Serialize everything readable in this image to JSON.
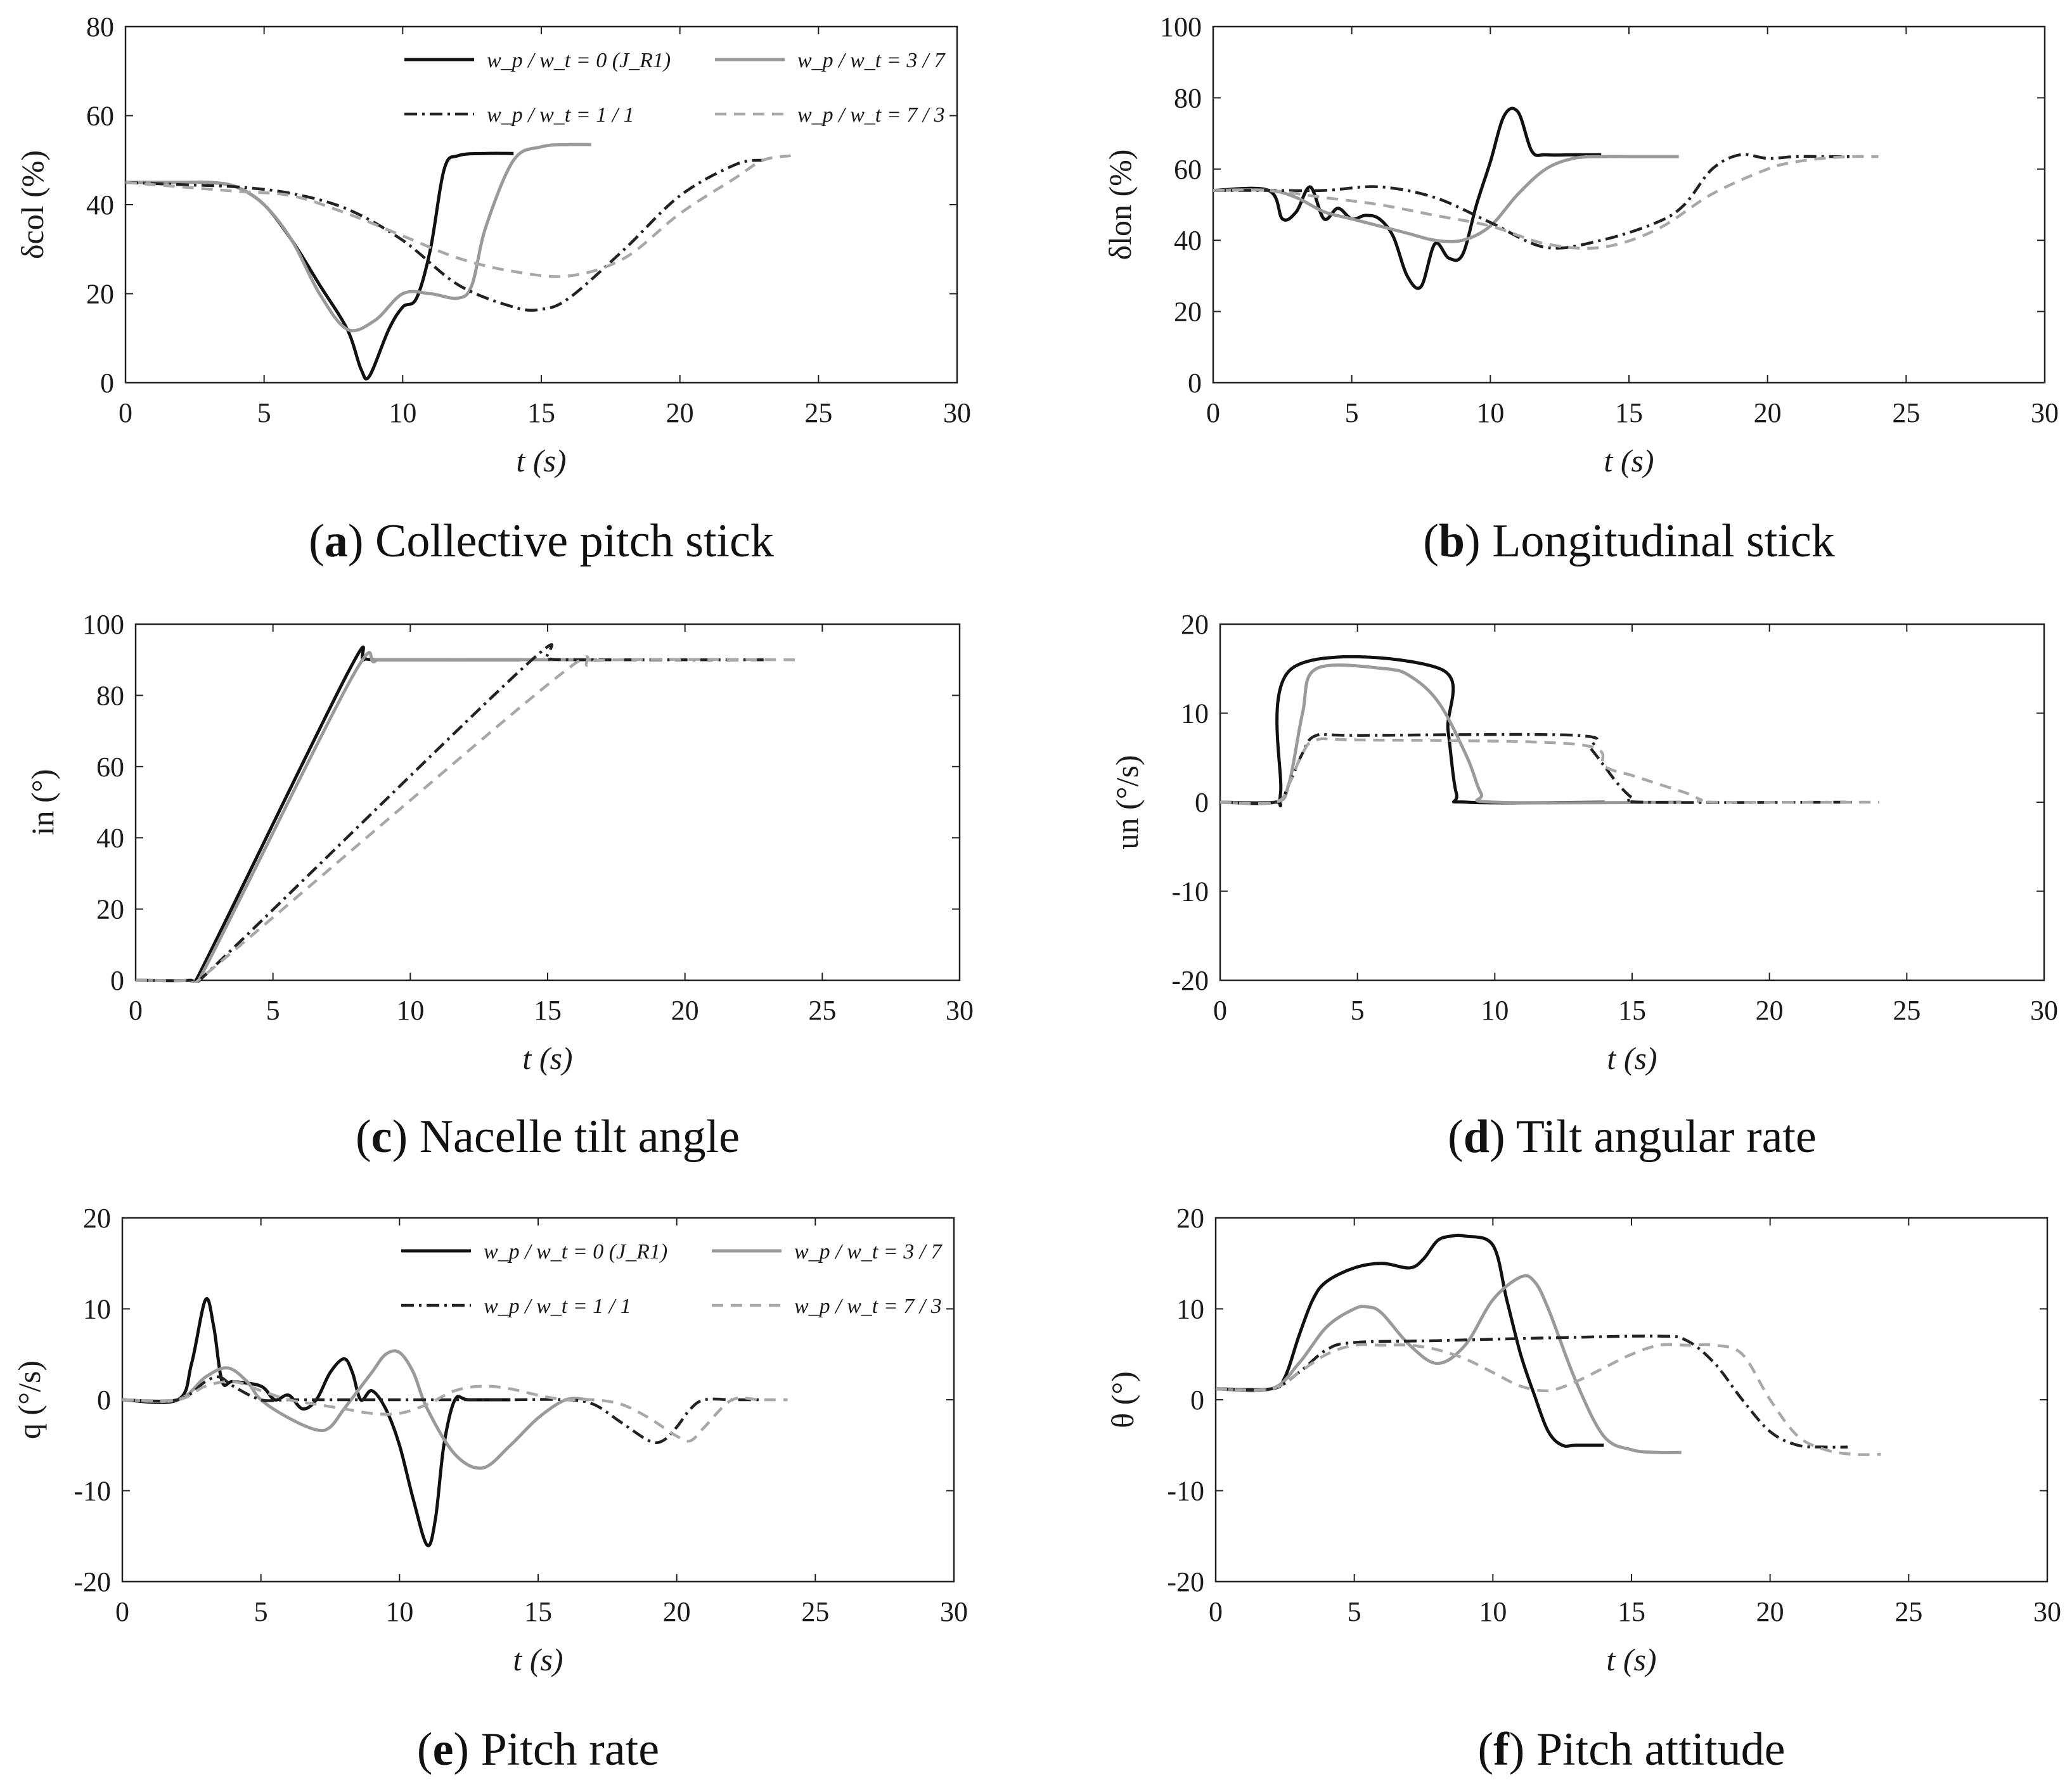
{
  "figure": {
    "legend_labels": {
      "s0": "w_p / w_t = 0 (J_R1)",
      "s1": "w_p / w_t = 3 / 7",
      "s2": "w_p / w_t = 1 / 1",
      "s3": "w_p / w_t = 7 / 3"
    },
    "series_colors": {
      "s0": "#111111",
      "s1": "#9a9a9a",
      "s2": "#222222",
      "s3": "#a8a8a8"
    }
  },
  "chart_data": [
    {
      "type": "line",
      "label": "a",
      "caption": "Collective pitch stick",
      "ylabel": "δcol (%)",
      "xlabel": "t (s)",
      "xlim": [
        0,
        30
      ],
      "ylim": [
        0,
        80
      ],
      "xticks": [
        0,
        5,
        10,
        15,
        20,
        25,
        30
      ],
      "yticks": [
        0,
        20,
        40,
        60,
        80
      ],
      "legend": true,
      "series": [
        {
          "name": "w_p / w_t = 0 (J_R1)",
          "x": [
            0,
            2,
            3,
            4,
            5,
            6,
            7,
            8,
            8.5,
            8.8,
            9.5,
            10,
            10.5,
            11,
            11.5,
            12,
            13,
            14
          ],
          "y": [
            45,
            45,
            45,
            44,
            40,
            32,
            22,
            12,
            3,
            1.5,
            12,
            17,
            19,
            30,
            48,
            51,
            51.5,
            51.5
          ]
        },
        {
          "name": "w_p / w_t = 3 / 7",
          "x": [
            0,
            2,
            3,
            4,
            5,
            6,
            7,
            8,
            9,
            10,
            11,
            12,
            12.5,
            13,
            14,
            15,
            16,
            16.8
          ],
          "y": [
            45,
            45,
            45,
            44,
            40,
            32,
            20,
            12,
            14,
            20,
            20,
            19,
            22,
            35,
            50,
            53,
            53.5,
            53.5
          ]
        },
        {
          "name": "w_p / w_t = 1 / 1",
          "x": [
            0,
            2,
            4,
            6,
            8,
            10,
            12,
            14,
            15,
            16,
            18,
            20,
            22,
            23
          ],
          "y": [
            45,
            44.5,
            44,
            42.5,
            39,
            32,
            22,
            17,
            16.5,
            19,
            30,
            42,
            49,
            50
          ]
        },
        {
          "name": "w_p / w_t = 7 / 3",
          "x": [
            0,
            2,
            4,
            6,
            8,
            10,
            12,
            14,
            16,
            18,
            20,
            22,
            23,
            24
          ],
          "y": [
            45,
            44,
            43,
            42,
            38,
            33,
            28,
            25,
            24,
            28,
            38,
            46,
            50,
            51
          ]
        }
      ]
    },
    {
      "type": "line",
      "label": "b",
      "caption": "Longitudinal stick",
      "ylabel": "δlon (%)",
      "xlabel": "t (s)",
      "xlim": [
        0,
        30
      ],
      "ylim": [
        0,
        100
      ],
      "xticks": [
        0,
        5,
        10,
        15,
        20,
        25,
        30
      ],
      "yticks": [
        0,
        20,
        40,
        60,
        80,
        100
      ],
      "legend": false,
      "series": [
        {
          "name": "w_p / w_t = 0 (J_R1)",
          "x": [
            0,
            2,
            2.5,
            3,
            3.5,
            4,
            4.5,
            5,
            5.5,
            6,
            6.5,
            7,
            7.5,
            8,
            8.5,
            9,
            9.5,
            10,
            10.5,
            11,
            11.5,
            12,
            13,
            14
          ],
          "y": [
            54,
            54,
            46,
            48,
            55,
            46,
            49,
            46,
            47,
            46,
            41,
            30,
            27,
            39,
            35,
            36,
            50,
            62,
            75,
            76,
            65,
            64,
            64,
            64
          ]
        },
        {
          "name": "w_p / w_t = 3 / 7",
          "x": [
            0,
            2,
            3,
            4,
            5,
            6,
            7,
            8,
            9,
            10,
            11,
            12,
            13,
            14,
            15,
            16,
            16.8
          ],
          "y": [
            54,
            54,
            52,
            48,
            46,
            44,
            42,
            40,
            40,
            44,
            53,
            60,
            63,
            63.5,
            63.5,
            63.5,
            63.5
          ]
        },
        {
          "name": "w_p / w_t = 1 / 1",
          "x": [
            0,
            2,
            4,
            6,
            8,
            10,
            12,
            14,
            16,
            17,
            18,
            19,
            20,
            21,
            22,
            23
          ],
          "y": [
            54,
            54,
            54,
            55,
            52,
            45,
            38,
            40,
            45,
            50,
            60,
            64,
            63,
            63.5,
            63.5,
            63.5
          ]
        },
        {
          "name": "w_p / w_t = 7 / 3",
          "x": [
            0,
            2,
            4,
            6,
            8,
            10,
            12,
            14,
            16,
            18,
            20,
            21,
            22,
            23,
            24
          ],
          "y": [
            54,
            54,
            52,
            50,
            47,
            44,
            39,
            38,
            43,
            53,
            60,
            62,
            63,
            63.5,
            63.5
          ]
        }
      ]
    },
    {
      "type": "line",
      "label": "c",
      "caption": "Nacelle tilt angle",
      "ylabel": "in (°)",
      "xlabel": "t (s)",
      "xlim": [
        0,
        30
      ],
      "ylim": [
        0,
        100
      ],
      "xticks": [
        0,
        5,
        10,
        15,
        20,
        25,
        30
      ],
      "yticks": [
        0,
        20,
        40,
        60,
        80,
        100
      ],
      "legend": false,
      "series": [
        {
          "name": "w_p / w_t = 0 (J_R1)",
          "x": [
            0,
            2,
            2.3,
            7.7,
            8.3,
            9,
            14
          ],
          "y": [
            0,
            0,
            1.5,
            86,
            90,
            90,
            90
          ]
        },
        {
          "name": "w_p / w_t = 3 / 7",
          "x": [
            0,
            2,
            2.4,
            7.8,
            8.7,
            9.5,
            16.8
          ],
          "y": [
            0,
            0,
            1.5,
            84,
            89.5,
            90,
            90
          ]
        },
        {
          "name": "w_p / w_t = 1 / 1",
          "x": [
            0,
            2,
            2.6,
            14,
            15,
            16,
            23
          ],
          "y": [
            0,
            0,
            2,
            87,
            90,
            90,
            90
          ]
        },
        {
          "name": "w_p / w_t = 7 / 3",
          "x": [
            0,
            2,
            2.6,
            15,
            16.5,
            17.5,
            24
          ],
          "y": [
            0,
            0,
            2,
            83,
            88.5,
            90,
            90
          ]
        }
      ]
    },
    {
      "type": "line",
      "label": "d",
      "caption": "Tilt angular rate",
      "ylabel": "un (°/s)",
      "xlabel": "t (s)",
      "xlim": [
        0,
        30
      ],
      "ylim": [
        -20,
        20
      ],
      "xticks": [
        0,
        5,
        10,
        15,
        20,
        25,
        30
      ],
      "yticks": [
        -20,
        -10,
        0,
        10,
        20
      ],
      "legend": false,
      "series": [
        {
          "name": "w_p / w_t = 0 (J_R1)",
          "x": [
            0,
            2,
            2.2,
            2.6,
            8,
            8.3,
            8.6,
            9,
            14
          ],
          "y": [
            0,
            0,
            1,
            15,
            15,
            8,
            1,
            0,
            0
          ]
        },
        {
          "name": "w_p / w_t = 3 / 7",
          "x": [
            0,
            2,
            2.5,
            3,
            3.5,
            6,
            7,
            8,
            9,
            9.5,
            10,
            16.8
          ],
          "y": [
            0,
            0,
            2,
            10,
            15,
            15,
            14,
            11,
            5,
            1,
            0,
            0
          ]
        },
        {
          "name": "w_p / w_t = 1 / 1",
          "x": [
            0,
            2,
            2.5,
            3,
            3.5,
            5,
            13,
            13.5,
            14,
            14.5,
            15,
            15.5,
            23
          ],
          "y": [
            0,
            0,
            2,
            5.5,
            7.5,
            7.5,
            7.5,
            6,
            4,
            2,
            0.5,
            0,
            0
          ]
        },
        {
          "name": "w_p / w_t = 7 / 3",
          "x": [
            0,
            2,
            2.5,
            3,
            3.5,
            5,
            13,
            14,
            15,
            16,
            17,
            17.5,
            18,
            24
          ],
          "y": [
            0,
            0,
            2,
            5.5,
            7,
            7,
            6.5,
            4,
            3,
            2,
            1,
            0.3,
            0,
            0
          ]
        }
      ]
    },
    {
      "type": "line",
      "label": "e",
      "caption": "Pitch rate",
      "ylabel": "q (°/s)",
      "xlabel": "t (s)",
      "xlim": [
        0,
        30
      ],
      "ylim": [
        -20,
        20
      ],
      "xticks": [
        0,
        5,
        10,
        15,
        20,
        25,
        30
      ],
      "yticks": [
        -20,
        -10,
        0,
        10,
        20
      ],
      "legend": true,
      "series": [
        {
          "name": "w_p / w_t = 0 (J_R1)",
          "x": [
            0,
            2,
            2.5,
            3,
            3.3,
            3.6,
            4,
            5,
            5.5,
            6,
            6.5,
            7,
            7.5,
            8,
            8.3,
            8.6,
            9,
            9.5,
            10,
            10.5,
            11,
            11.3,
            11.6,
            12,
            12.5,
            14
          ],
          "y": [
            0,
            0,
            4,
            11,
            8,
            2,
            2,
            1.5,
            0,
            0.5,
            -1,
            0,
            3,
            4.5,
            3,
            0,
            1,
            -1,
            -5,
            -11,
            -16,
            -13,
            -5,
            0,
            0,
            0
          ]
        },
        {
          "name": "w_p / w_t = 3 / 7",
          "x": [
            0,
            2,
            3,
            3.8,
            4.5,
            5,
            6,
            7,
            7.5,
            8,
            8.5,
            9,
            9.5,
            10,
            10.5,
            11,
            12,
            13,
            14,
            15,
            16,
            16.8
          ],
          "y": [
            0,
            0,
            2.5,
            3.5,
            2,
            0,
            -2,
            -3.3,
            -3,
            -1,
            1,
            3,
            5,
            5.2,
            3,
            -1,
            -6,
            -7.5,
            -5,
            -2,
            0,
            0
          ]
        },
        {
          "name": "w_p / w_t = 1 / 1",
          "x": [
            0,
            2,
            3,
            3.5,
            4,
            5,
            6,
            8,
            10,
            12,
            14,
            16,
            17,
            18,
            19,
            19.5,
            20,
            20.5,
            21,
            22,
            23
          ],
          "y": [
            0,
            0,
            2,
            2.5,
            1.5,
            0,
            0,
            0,
            0,
            0,
            0,
            0,
            -0.5,
            -2.5,
            -4.5,
            -4.5,
            -3,
            -1,
            0,
            0,
            0
          ]
        },
        {
          "name": "w_p / w_t = 7 / 3",
          "x": [
            0,
            2,
            3,
            4,
            5,
            6,
            7,
            8,
            9,
            10,
            11,
            12,
            13,
            14,
            15,
            16,
            17,
            18,
            19,
            20,
            20.5,
            21,
            22,
            23,
            24
          ],
          "y": [
            0,
            0,
            1.5,
            2,
            1,
            0,
            -0.5,
            -1,
            -1.5,
            -1.5,
            -0.5,
            1,
            1.5,
            1.2,
            0.5,
            0,
            0,
            -0.5,
            -2,
            -4,
            -4.5,
            -3,
            0,
            0,
            0
          ]
        }
      ]
    },
    {
      "type": "line",
      "label": "f",
      "caption": "Pitch attitude",
      "ylabel": "θ (°)",
      "xlabel": "t (s)",
      "xlim": [
        0,
        30
      ],
      "ylim": [
        -20,
        20
      ],
      "xticks": [
        0,
        5,
        10,
        15,
        20,
        25,
        30
      ],
      "yticks": [
        -20,
        -10,
        0,
        10,
        20
      ],
      "legend": false,
      "series": [
        {
          "name": "w_p / w_t = 0 (J_R1)",
          "x": [
            0,
            2,
            2.5,
            3,
            3.5,
            4,
            5,
            6,
            7,
            7.5,
            8,
            8.5,
            9,
            10,
            10.5,
            11,
            11.5,
            12,
            12.5,
            13,
            14
          ],
          "y": [
            1.2,
            1.2,
            2.5,
            7,
            11,
            13,
            14.5,
            15,
            14.5,
            15.5,
            17.5,
            18,
            18,
            17,
            11,
            5,
            0.5,
            -3.5,
            -5,
            -5,
            -5
          ]
        },
        {
          "name": "w_p / w_t = 3 / 7",
          "x": [
            0,
            2,
            3,
            4,
            5,
            5.5,
            6,
            7,
            8,
            9,
            10,
            11,
            11.5,
            12,
            13,
            14,
            15,
            16,
            16.8
          ],
          "y": [
            1.2,
            1.2,
            4,
            8,
            10,
            10.2,
            9.5,
            6,
            4,
            6,
            11,
            13.5,
            13,
            10,
            2,
            -4,
            -5.5,
            -5.8,
            -5.8
          ]
        },
        {
          "name": "w_p / w_t = 1 / 1",
          "x": [
            0,
            2,
            3,
            4,
            5,
            8,
            12,
            16,
            17,
            18,
            19,
            20,
            21,
            22,
            22.8
          ],
          "y": [
            1.2,
            1.2,
            3,
            5.5,
            6.3,
            6.5,
            6.8,
            7,
            6.5,
            4,
            0,
            -3.5,
            -5,
            -5.2,
            -5.2
          ]
        },
        {
          "name": "w_p / w_t = 7 / 3",
          "x": [
            0,
            2,
            3,
            4,
            5,
            6,
            7,
            8,
            9,
            10,
            11,
            12,
            13,
            14,
            15,
            16,
            17,
            18,
            19,
            20,
            21,
            22,
            23,
            24
          ],
          "y": [
            1.2,
            1.2,
            3,
            5,
            6,
            6,
            6,
            5.5,
            4.5,
            3,
            1.5,
            1,
            2,
            3.5,
            5,
            6,
            6,
            6,
            5,
            0,
            -4,
            -5.5,
            -6,
            -6
          ]
        }
      ]
    }
  ]
}
